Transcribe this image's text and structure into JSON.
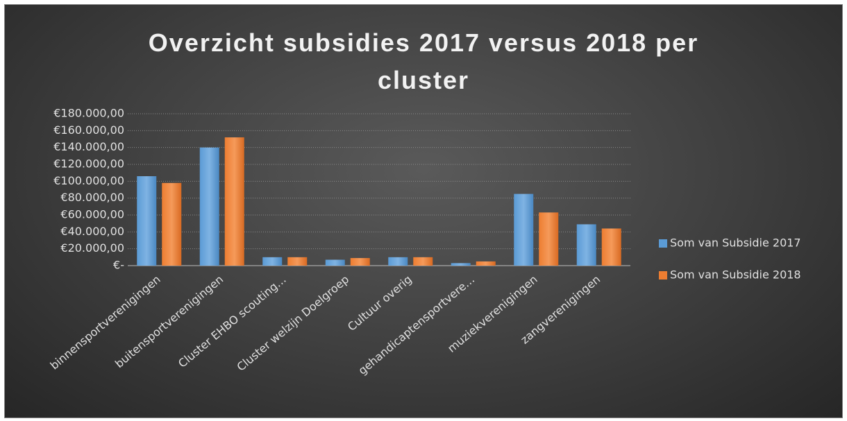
{
  "chart_data": {
    "type": "bar",
    "title": "Overzicht subsidies 2017 versus 2018 per cluster",
    "categories": [
      "binnensportverenigingen",
      "buitensportverenigingen",
      "Cluster EHBO scouting…",
      "Cluster welzijn Doelgroep",
      "Cultuur overig",
      "gehandicaptensportvere…",
      "muziekverenigingen",
      "zangverenigingen"
    ],
    "series": [
      {
        "name": "Som van Subsidie 2017",
        "color": "#5b9bd5",
        "values": [
          106000,
          140000,
          10000,
          7000,
          10000,
          3000,
          85000,
          49000
        ]
      },
      {
        "name": "Som van Subsidie 2018",
        "color": "#ed7d31",
        "values": [
          98000,
          152000,
          10000,
          9000,
          10000,
          5000,
          63000,
          44000
        ]
      }
    ],
    "ylim": [
      0,
      180000
    ],
    "yticks": [
      {
        "value": 0,
        "label": "€-"
      },
      {
        "value": 20000,
        "label": "€20.000,00"
      },
      {
        "value": 40000,
        "label": "€40.000,00"
      },
      {
        "value": 60000,
        "label": "€60.000,00"
      },
      {
        "value": 80000,
        "label": "€80.000,00"
      },
      {
        "value": 100000,
        "label": "€100.000,00"
      },
      {
        "value": 120000,
        "label": "€120.000,00"
      },
      {
        "value": 140000,
        "label": "€140.000,00"
      },
      {
        "value": 160000,
        "label": "€160.000,00"
      },
      {
        "value": 180000,
        "label": "€180.000,00"
      }
    ],
    "grid": true,
    "legend": "right"
  }
}
